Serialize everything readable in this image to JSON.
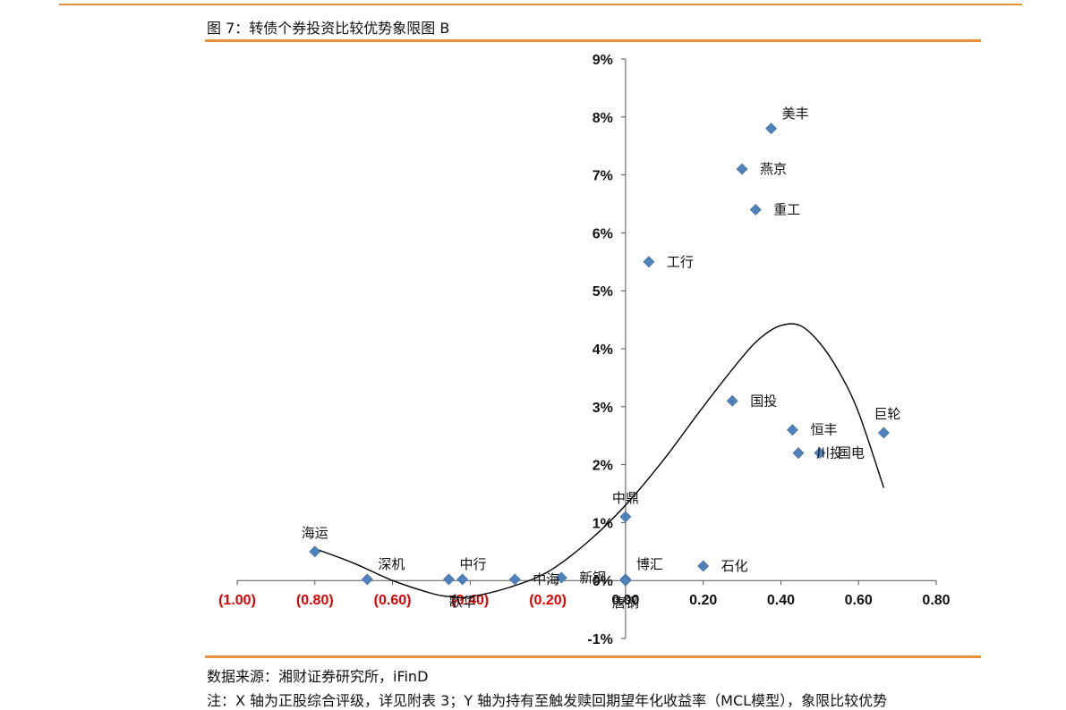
{
  "figure": {
    "title": "图 7：转债个券投资比较优势象限图 B",
    "source": "数据来源：湘财证券研究所，iFinD",
    "note": "注：X 轴为正股综合评级，详见附表 3；Y 轴为持有至触发赎回期望年化收益率（MCL模型），象限比较优势"
  },
  "colors": {
    "accent_rule": "#e8913a",
    "marker": "#4f81bd",
    "negative_tick": "#e00000",
    "axis": "#555555"
  },
  "chart_data": {
    "type": "scatter",
    "title": "转债个券投资比较优势象限图 B",
    "xlabel": "",
    "ylabel": "",
    "xlim": [
      -1.0,
      0.8
    ],
    "ylim": [
      -1,
      9
    ],
    "x_ticks": [
      {
        "value": -1.0,
        "label": "(1.00)",
        "negative": true
      },
      {
        "value": -0.8,
        "label": "(0.80)",
        "negative": true
      },
      {
        "value": -0.6,
        "label": "(0.60)",
        "negative": true
      },
      {
        "value": -0.4,
        "label": "(0.40)",
        "negative": true
      },
      {
        "value": -0.2,
        "label": "(0.20)",
        "negative": true
      },
      {
        "value": 0.0,
        "label": "0.00",
        "negative": false
      },
      {
        "value": 0.2,
        "label": "0.20",
        "negative": false
      },
      {
        "value": 0.4,
        "label": "0.40",
        "negative": false
      },
      {
        "value": 0.6,
        "label": "0.60",
        "negative": false
      },
      {
        "value": 0.8,
        "label": "0.80",
        "negative": false
      }
    ],
    "y_ticks": [
      {
        "value": -1,
        "label": "-1%"
      },
      {
        "value": 0,
        "label": "0%"
      },
      {
        "value": 1,
        "label": "1%"
      },
      {
        "value": 2,
        "label": "2%"
      },
      {
        "value": 3,
        "label": "3%"
      },
      {
        "value": 4,
        "label": "4%"
      },
      {
        "value": 5,
        "label": "5%"
      },
      {
        "value": 6,
        "label": "6%"
      },
      {
        "value": 7,
        "label": "7%"
      },
      {
        "value": 8,
        "label": "8%"
      },
      {
        "value": 9,
        "label": "9%"
      }
    ],
    "points": [
      {
        "name": "美丰",
        "x": 0.375,
        "y": 7.8,
        "label_pos": "top-right"
      },
      {
        "name": "燕京",
        "x": 0.3,
        "y": 7.1,
        "label_pos": "right"
      },
      {
        "name": "重工",
        "x": 0.335,
        "y": 6.4,
        "label_pos": "right"
      },
      {
        "name": "工行",
        "x": 0.06,
        "y": 5.5,
        "label_pos": "right"
      },
      {
        "name": "国投",
        "x": 0.275,
        "y": 3.1,
        "label_pos": "right"
      },
      {
        "name": "巨轮",
        "x": 0.665,
        "y": 2.55,
        "label_pos": "top-left"
      },
      {
        "name": "恒丰",
        "x": 0.43,
        "y": 2.6,
        "label_pos": "right"
      },
      {
        "name": "川投",
        "x": 0.445,
        "y": 2.2,
        "label_pos": "right"
      },
      {
        "name": "国电",
        "x": 0.5,
        "y": 2.2,
        "label_pos": "right"
      },
      {
        "name": "中鼎",
        "x": 0.0,
        "y": 1.1,
        "label_pos": "top"
      },
      {
        "name": "石化",
        "x": 0.2,
        "y": 0.25,
        "label_pos": "right"
      },
      {
        "name": "博汇",
        "x": 0.0,
        "y": 0.02,
        "label_pos": "top-right"
      },
      {
        "name": "海运",
        "x": -0.8,
        "y": 0.5,
        "label_pos": "top"
      },
      {
        "name": "深机",
        "x": -0.665,
        "y": 0.02,
        "label_pos": "top-right"
      },
      {
        "name": "中行",
        "x": -0.455,
        "y": 0.02,
        "label_pos": "top-right"
      },
      {
        "name": "歌华",
        "x": -0.42,
        "y": 0.02,
        "label_pos": "below"
      },
      {
        "name": "中海",
        "x": -0.285,
        "y": 0.02,
        "label_pos": "right"
      },
      {
        "name": "新钢",
        "x": -0.165,
        "y": 0.05,
        "label_pos": "right"
      },
      {
        "name": "唐钢",
        "x": 0.0,
        "y": 0.0,
        "label_pos": "below"
      }
    ],
    "trend_line": {
      "kind": "polynomial-fit",
      "x": [
        -0.8,
        -0.7,
        -0.6,
        -0.5,
        -0.45,
        -0.4,
        -0.3,
        -0.2,
        -0.1,
        0.0,
        0.1,
        0.2,
        0.3,
        0.35,
        0.4,
        0.45,
        0.5,
        0.55,
        0.6,
        0.665
      ],
      "y": [
        0.55,
        0.3,
        0.0,
        -0.22,
        -0.28,
        -0.28,
        -0.12,
        0.15,
        0.65,
        1.3,
        2.1,
        3.0,
        3.85,
        4.2,
        4.4,
        4.4,
        4.1,
        3.6,
        2.9,
        1.6
      ]
    }
  }
}
